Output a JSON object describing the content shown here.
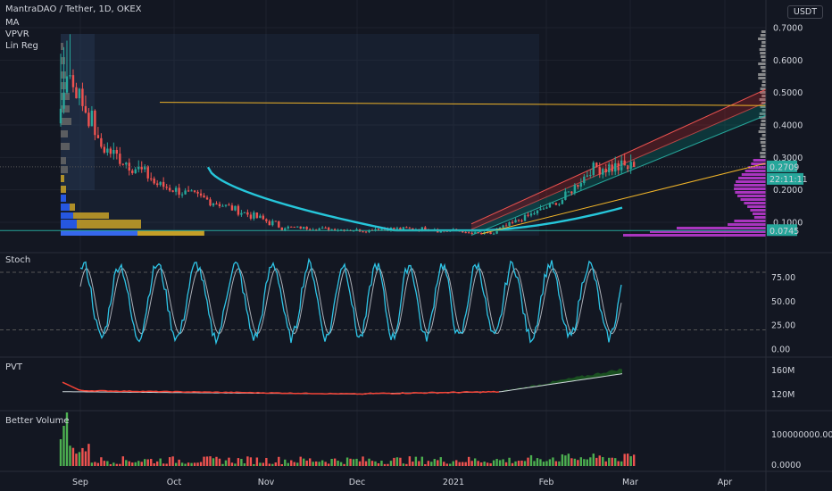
{
  "header": {
    "title": "MantraDAO / Tether, 1D, OKEX",
    "indicators": [
      "MA",
      "VPVR",
      "Lin Reg"
    ],
    "currency": "USDT"
  },
  "price_axis": {
    "ticks": [
      "0.7000",
      "0.6000",
      "0.5000",
      "0.4000",
      "0.3000",
      "0.2000",
      "0.1000"
    ],
    "last_price": "0.2709",
    "countdown": "22:11:11",
    "line_price": "0.0745"
  },
  "time_axis": [
    "Sep",
    "Oct",
    "Nov",
    "Dec",
    "2021",
    "Feb",
    "Mar",
    "Apr"
  ],
  "panels": {
    "stoch": {
      "label": "Stoch",
      "ticks": [
        "75.00",
        "50.00",
        "25.00",
        "0.00"
      ]
    },
    "pvt": {
      "label": "PVT",
      "ticks": [
        "160M",
        "120M"
      ]
    },
    "volume": {
      "label": "Better Volume",
      "ticks": [
        "100000000.000",
        "0.0000"
      ]
    }
  },
  "colors": {
    "background": "#131722",
    "up": "#26a69a",
    "down": "#ef5350",
    "ma": "#26c6da",
    "regline": "#f0b429",
    "stoch_k": "#2ec4e6",
    "stoch_d": "#d1d4dc",
    "pvt_line": "#f44336",
    "pvt_fill": "#1b5e20",
    "vol_up": "#4caf50",
    "vol_down": "#ef5350",
    "vpvr_teal": "#2962ff",
    "vpvr_gold": "#c9a227",
    "vpvr_magenta": "#c43bd9"
  },
  "chart_data": {
    "type": "candlestick",
    "title": "MantraDAO / Tether, 1D, OKEX",
    "x_range": [
      "2020-08-26",
      "2021-02-25"
    ],
    "ylim": [
      0.04,
      0.72
    ],
    "key_prices": {
      "start_high": 0.7,
      "start_close": 0.58,
      "bottom": 0.06,
      "last": 0.2709,
      "horizontal_line": 0.0745
    },
    "ma": {
      "start_value": 0.27,
      "min_value": 0.075,
      "end_value": 0.145
    },
    "lin_reg_channel": {
      "start": "2021-01-01",
      "end": "2021-04-08",
      "lower_start": 0.06,
      "upper_start": 0.095,
      "lower_end": 0.43,
      "upper_end": 0.51
    },
    "stoch_ylim": [
      0,
      100
    ],
    "stoch_levels": [
      80,
      20
    ],
    "pvt_ylim": [
      100,
      170
    ],
    "pvt_start": 128,
    "pvt_end": 158,
    "volume_ylim": [
      0,
      150000000
    ]
  }
}
